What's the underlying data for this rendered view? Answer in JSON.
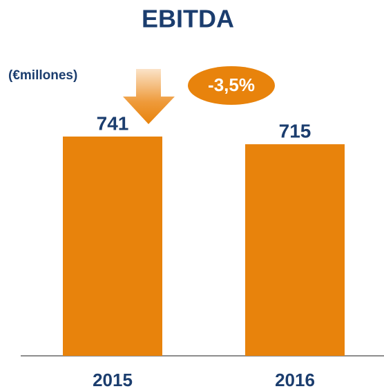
{
  "chart_data": {
    "type": "bar",
    "title": "EBITDA",
    "unit_label": "(€millones)",
    "annotation": "-3,5%",
    "categories": [
      "2015",
      "2016"
    ],
    "values": [
      741,
      715
    ],
    "color": "#e8830c"
  }
}
